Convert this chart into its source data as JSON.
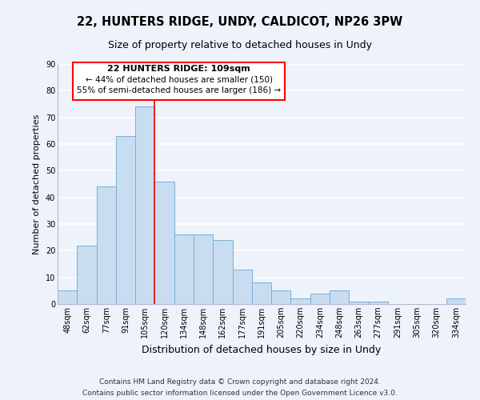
{
  "title": "22, HUNTERS RIDGE, UNDY, CALDICOT, NP26 3PW",
  "subtitle": "Size of property relative to detached houses in Undy",
  "xlabel": "Distribution of detached houses by size in Undy",
  "ylabel": "Number of detached properties",
  "categories": [
    "48sqm",
    "62sqm",
    "77sqm",
    "91sqm",
    "105sqm",
    "120sqm",
    "134sqm",
    "148sqm",
    "162sqm",
    "177sqm",
    "191sqm",
    "205sqm",
    "220sqm",
    "234sqm",
    "248sqm",
    "263sqm",
    "277sqm",
    "291sqm",
    "305sqm",
    "320sqm",
    "334sqm"
  ],
  "values": [
    5,
    22,
    44,
    63,
    74,
    46,
    26,
    26,
    24,
    13,
    8,
    5,
    2,
    4,
    5,
    1,
    1,
    0,
    0,
    0,
    2
  ],
  "bar_color": "#c9ddf0",
  "bar_edge_color": "#7aafd4",
  "property_label": "22 HUNTERS RIDGE: 109sqm",
  "annotation_line1": "← 44% of detached houses are smaller (150)",
  "annotation_line2": "55% of semi-detached houses are larger (186) →",
  "vline_x_index": 4.5,
  "vline_color": "red",
  "box_color": "red",
  "ylim": [
    0,
    90
  ],
  "yticks": [
    0,
    10,
    20,
    30,
    40,
    50,
    60,
    70,
    80,
    90
  ],
  "footer1": "Contains HM Land Registry data © Crown copyright and database right 2024.",
  "footer2": "Contains public sector information licensed under the Open Government Licence v3.0.",
  "bg_color": "#eef2fb",
  "grid_color": "#ffffff",
  "title_fontsize": 10.5,
  "subtitle_fontsize": 9,
  "xlabel_fontsize": 9,
  "ylabel_fontsize": 8,
  "tick_fontsize": 7,
  "footer_fontsize": 6.5,
  "annot_fontsize": 8
}
